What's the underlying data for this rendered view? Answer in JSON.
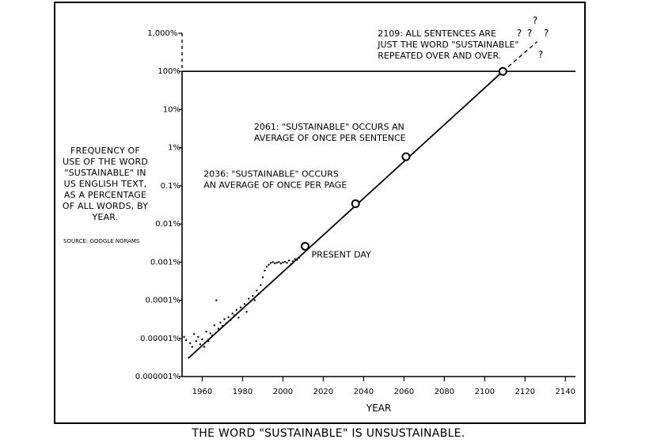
{
  "caption": "The word \"sustainable\" is unsustainable.",
  "side_note": "Frequency of use of the word \"sustainable\" in US English text, as a percentage of all words, by year.",
  "source": "Source: Google Ngrams",
  "chart_data": {
    "type": "line",
    "xlabel": "YEAR",
    "ylabel": "",
    "title": "",
    "y_scale": "log",
    "xlim": [
      1950,
      2145
    ],
    "ylim": [
      1e-06,
      1000
    ],
    "x_ticks": [
      1960,
      1980,
      2000,
      2020,
      2040,
      2060,
      2080,
      2100,
      2120,
      2140
    ],
    "x_tick_labels": [
      "1960",
      "1980",
      "2000",
      "2020",
      "2040",
      "2060",
      "2080",
      "2100",
      "2120",
      "2140"
    ],
    "y_ticks": [
      1e-06,
      1e-05,
      0.0001,
      0.001,
      0.01,
      0.1,
      1,
      10,
      100,
      1000
    ],
    "y_tick_labels": [
      "0.000001%",
      "0.00001%",
      "0.0001%",
      "0.001%",
      "0.01%",
      "0.1%",
      "1%",
      "10%",
      "100%",
      "1,000%-"
    ],
    "grid": false,
    "reference_line": {
      "y": 100
    },
    "trend": {
      "x": [
        1953,
        2109
      ],
      "y": [
        3e-06,
        100
      ]
    },
    "extrapolation": {
      "x": [
        2109,
        2126
      ],
      "y": [
        100,
        600
      ]
    },
    "observed_points": {
      "x": [
        1951,
        1952,
        1954,
        1955,
        1956,
        1957,
        1958,
        1959,
        1960,
        1961,
        1962,
        1963,
        1964,
        1965,
        1966,
        1967,
        1968,
        1969,
        1970,
        1971,
        1972,
        1973,
        1974,
        1975,
        1976,
        1977,
        1978,
        1979,
        1980,
        1981,
        1982,
        1983,
        1984,
        1985,
        1986,
        1987,
        1988,
        1989,
        1990,
        1991,
        1992,
        1993,
        1994,
        1995,
        1996,
        1997,
        1998,
        1999,
        2000,
        2001,
        2002,
        2003,
        2004,
        2005,
        2006,
        2007,
        2008
      ],
      "y": [
        1.1e-05,
        9e-06,
        7.5e-06,
        6e-06,
        1.3e-05,
        8.5e-06,
        1.1e-05,
        7e-06,
        9.5e-06,
        6e-06,
        1.5e-05,
        8.5e-06,
        1.35e-05,
        1.2e-05,
        2.2e-05,
        0.0001,
        1.8e-05,
        2.6e-05,
        2.1e-05,
        3.2e-05,
        2.5e-05,
        3.6e-05,
        3e-05,
        4.5e-05,
        4e-05,
        5.6e-05,
        3.5e-05,
        6.5e-05,
        6e-05,
        8e-05,
        5e-05,
        0.00011,
        9.5e-05,
        0.00013,
        0.0001,
        0.00018,
        0.00015,
        0.00025,
        0.0004,
        0.0006,
        0.00075,
        0.00085,
        0.00095,
        0.001,
        0.00093,
        0.00097,
        0.001,
        0.00092,
        0.00098,
        0.00102,
        0.00096,
        0.0011,
        0.00088,
        0.00105,
        0.0012,
        0.00115,
        0.0013
      ]
    },
    "milestones": [
      {
        "x": 2011,
        "y": 0.0026,
        "label": [
          "PRESENT DAY"
        ]
      },
      {
        "x": 2036,
        "y": 0.034,
        "label": [
          "2036: \"SUSTAINABLE\" OCCURS",
          "AN AVERAGE OF ONCE PER PAGE"
        ]
      },
      {
        "x": 2061,
        "y": 0.58,
        "label": [
          "2061: \"SUSTAINABLE\" OCCURS AN",
          "AVERAGE OF ONCE PER SENTENCE"
        ]
      },
      {
        "x": 2109,
        "y": 100,
        "label": [
          "2109: ALL SENTENCES ARE",
          "JUST THE WORD \"SUSTAINABLE\"",
          "REPEATED OVER AND OVER."
        ]
      }
    ],
    "question_marks": "? ? ? ? ?"
  }
}
